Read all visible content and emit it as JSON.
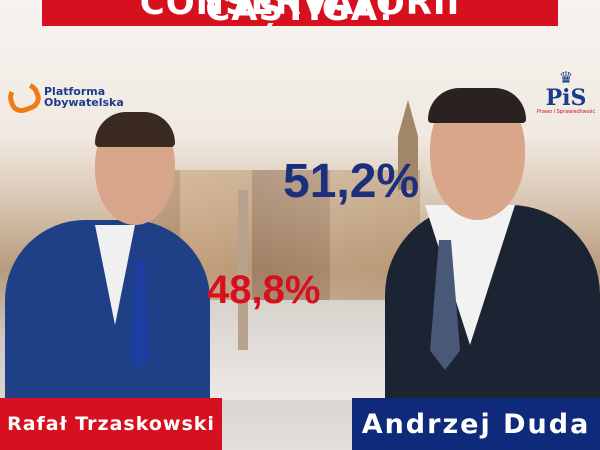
{
  "headline": "CONSERVATORII CÂȘTIGĂ!",
  "left_candidate": {
    "party": "Platforma Obywatelska",
    "party_line1": "Platforma",
    "party_line2": "Obywatelska",
    "name": "Rafał Trzaskowski",
    "result": "48,8%"
  },
  "right_candidate": {
    "party": "PiS",
    "party_sub": "Prawo i Sprawiedliwość",
    "name": "Andrzej Duda",
    "result": "51,2%"
  },
  "colors": {
    "red": "#d7101f",
    "navy": "#0f2a7a",
    "po_orange": "#f07a16"
  }
}
